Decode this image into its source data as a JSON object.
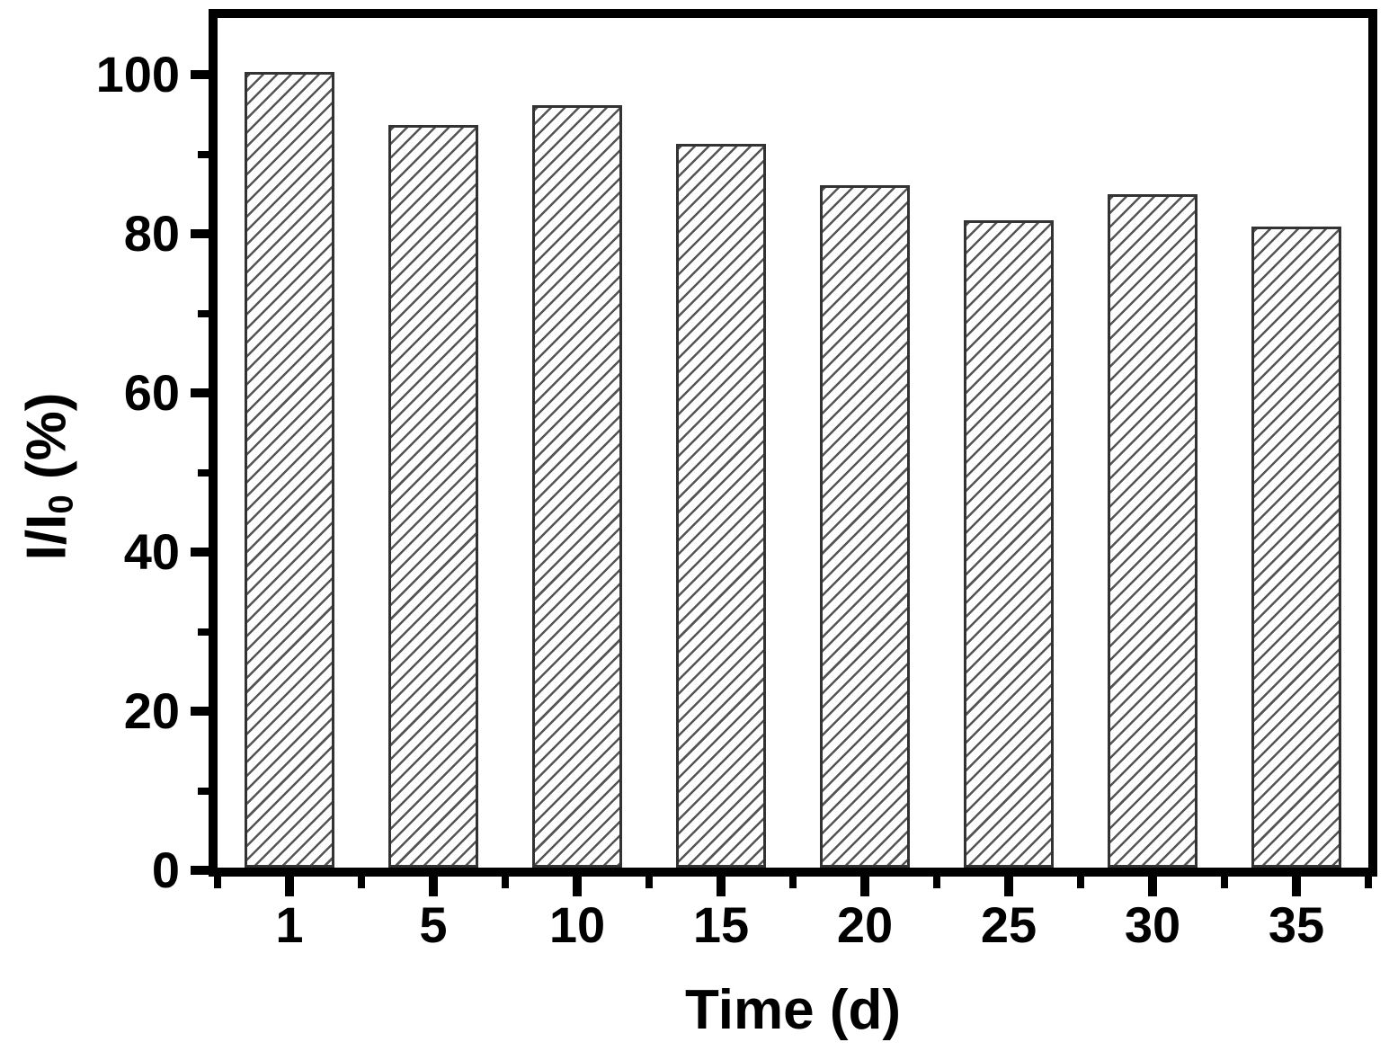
{
  "chart_data": {
    "type": "bar",
    "title": "",
    "categories": [
      "1",
      "5",
      "10",
      "15",
      "20",
      "25",
      "30",
      "35"
    ],
    "values": [
      100.0,
      93.3,
      95.8,
      91.0,
      85.8,
      81.4,
      84.6,
      80.6
    ],
    "xlabel": "Time (d)",
    "ylabel": "I/I0 (%)",
    "ylabel_parts": {
      "main": "I/I",
      "sub": "0",
      "rest": " (%)"
    },
    "ylim": [
      0,
      107
    ],
    "yticks": [
      0,
      20,
      40,
      60,
      80,
      100
    ],
    "yticks_minor": [
      10,
      30,
      50,
      70,
      90
    ],
    "xticks_minor_at_boundaries": true,
    "grid": false,
    "legend": "none",
    "bar_style": {
      "fill": "#ffffff",
      "hatch": "diagonal-forward",
      "hatch_color": "#555555",
      "border_color": "#333333"
    },
    "axis_color": "#000000",
    "text_color": "#000000"
  }
}
